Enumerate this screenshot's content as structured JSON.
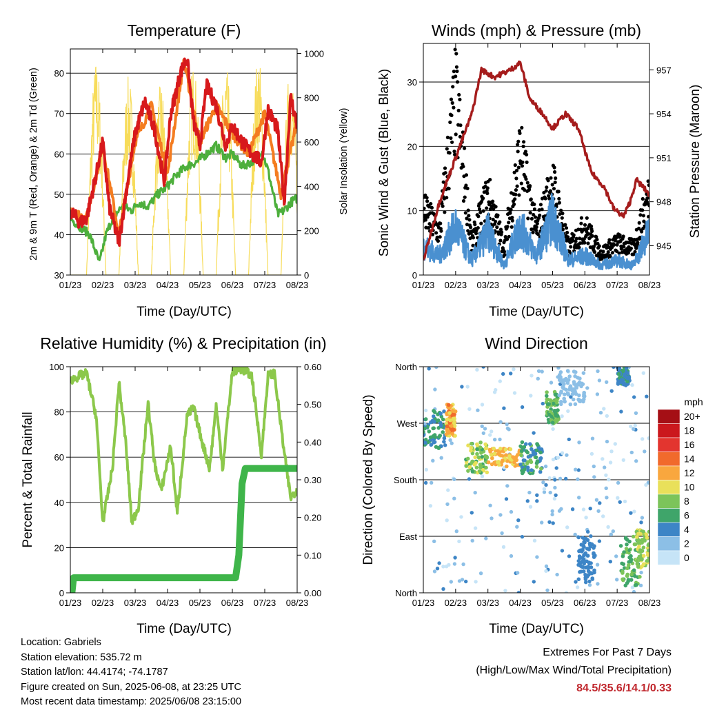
{
  "x_ticks": [
    "01/23",
    "02/23",
    "03/23",
    "04/23",
    "05/23",
    "06/23",
    "07/23",
    "08/23"
  ],
  "x_label": "Time (Day/UTC)",
  "colors": {
    "red": "#d7191c",
    "orange": "#f47c20",
    "green": "#4daf3c",
    "yellow": "#f7dc5a",
    "maroon": "#a51c1c",
    "blue": "#4a90d0",
    "black": "#000000",
    "rh": "#8cc84b",
    "rain": "#3fb54a"
  },
  "panels": {
    "temperature": {
      "title": "Temperature (F)",
      "ylabel_left": "2m & 9m T (Red, Orange) & 2m Td (Green)",
      "ylabel_right": "Solar Insolation (Yellow)"
    },
    "winds": {
      "title": "Winds (mph) & Pressure (mb)",
      "ylabel_left": "Sonic Wind & Gust (Blue, Black)",
      "ylabel_right": "Station Pressure (Maroon)"
    },
    "humidity": {
      "title": "Relative Humidity (%) & Precipitation (in)",
      "ylabel_left": "Percent & Total Rainfall"
    },
    "direction": {
      "title": "Wind Direction",
      "ylabel_left": "Direction (Colored By Speed)",
      "legend_title": "mph",
      "legend_labels": [
        "20+",
        "18",
        "16",
        "14",
        "12",
        "10",
        "8",
        "6",
        "4",
        "2",
        "0"
      ],
      "legend_colors": [
        "#a50f15",
        "#cb181d",
        "#e3352f",
        "#f16a2c",
        "#f9a73e",
        "#e9e05a",
        "#7cc45a",
        "#3fa56a",
        "#3d85c6",
        "#8cbfe6",
        "#c6e4f7"
      ]
    }
  },
  "chart_data": [
    {
      "type": "line",
      "title": "Temperature (F)",
      "xlabel": "Time (Day/UTC)",
      "ylabel": "2m & 9m T (Red, Orange) & 2m Td (Green)",
      "y2label": "Solar Insolation (Yellow)",
      "ylim": [
        30,
        86
      ],
      "y_ticks": [
        30,
        40,
        50,
        60,
        70,
        80
      ],
      "y2lim": [
        0,
        1020
      ],
      "y2_ticks": [
        0,
        200,
        400,
        600,
        800,
        1000
      ],
      "series": [
        {
          "name": "2m T",
          "axis": "left",
          "color": "#d7191c",
          "x": [
            0.0,
            0.1,
            0.3,
            0.5,
            0.8,
            1.0,
            1.2,
            1.5,
            1.8,
            2.0,
            2.3,
            2.6,
            2.9,
            3.1,
            3.4,
            3.6,
            3.8,
            4.0,
            4.2,
            4.5,
            4.8,
            5.0,
            5.3,
            5.6,
            5.9,
            6.1,
            6.4,
            6.6,
            6.8,
            7.0
          ],
          "y": [
            46,
            45,
            43,
            44,
            55,
            63,
            47,
            38,
            55,
            65,
            73,
            66,
            53,
            70,
            80,
            84,
            68,
            62,
            77,
            72,
            62,
            67,
            63,
            60,
            58,
            71,
            66,
            48,
            74,
            67
          ]
        },
        {
          "name": "9m T",
          "axis": "left",
          "color": "#f47c20",
          "x": [
            0.0,
            0.5,
            1.0,
            1.5,
            2.0,
            2.5,
            3.0,
            3.5,
            4.0,
            4.5,
            5.0,
            5.5,
            6.0,
            6.5,
            7.0
          ],
          "y": [
            46,
            44,
            62,
            40,
            63,
            72,
            55,
            83,
            63,
            72,
            65,
            60,
            70,
            50,
            68
          ]
        },
        {
          "name": "2m Td",
          "axis": "left",
          "color": "#4daf3c",
          "x": [
            0.0,
            0.3,
            0.6,
            0.9,
            1.1,
            1.3,
            1.6,
            1.9,
            2.1,
            2.4,
            2.7,
            3.0,
            3.3,
            3.6,
            3.9,
            4.2,
            4.5,
            4.8,
            5.0,
            5.3,
            5.6,
            5.9,
            6.1,
            6.4,
            6.6,
            6.8,
            7.0
          ],
          "y": [
            44,
            42,
            40,
            33,
            40,
            44,
            47,
            46,
            48,
            47,
            50,
            52,
            55,
            57,
            58,
            60,
            62,
            59,
            60,
            57,
            58,
            61,
            56,
            45,
            46,
            48,
            49
          ]
        },
        {
          "name": "Solar Insolation",
          "axis": "right",
          "color": "#f7dc5a",
          "peaks_x": [
            0.8,
            1.8,
            2.8,
            3.8,
            4.8,
            5.8,
            6.8
          ],
          "peaks_y": [
            980,
            900,
            870,
            960,
            950,
            1000,
            960
          ]
        }
      ]
    },
    {
      "type": "line",
      "title": "Winds (mph) & Pressure (mb)",
      "xlabel": "Time (Day/UTC)",
      "ylabel": "Sonic Wind & Gust (Blue, Black)",
      "y2label": "Station Pressure (Maroon)",
      "ylim": [
        0,
        36
      ],
      "y_ticks": [
        0,
        10,
        20,
        30
      ],
      "y2lim": [
        943,
        958.8
      ],
      "y2_ticks": [
        945,
        948,
        951,
        954,
        957
      ],
      "series": [
        {
          "name": "Sonic Wind",
          "axis": "left",
          "color": "#4a90d0",
          "x": [
            0.0,
            0.5,
            1.0,
            1.5,
            2.0,
            2.5,
            3.0,
            3.5,
            4.0,
            4.5,
            5.0,
            5.5,
            6.0,
            6.5,
            7.0
          ],
          "y": [
            6,
            4,
            10,
            3,
            9,
            2,
            10,
            4,
            12,
            3,
            4,
            2,
            3,
            2,
            9
          ]
        },
        {
          "name": "Gust",
          "axis": "left",
          "color": "#000000",
          "x": [
            0.0,
            0.5,
            1.0,
            1.5,
            2.0,
            2.5,
            3.0,
            3.5,
            4.0,
            4.5,
            5.0,
            5.5,
            6.0,
            6.5,
            7.0
          ],
          "y": [
            12,
            8,
            33,
            6,
            15,
            5,
            23,
            8,
            17,
            5,
            9,
            4,
            6,
            5,
            15
          ]
        },
        {
          "name": "Station Pressure",
          "axis": "right",
          "color": "#a51c1c",
          "x": [
            0.0,
            0.5,
            1.0,
            1.5,
            1.8,
            2.2,
            2.7,
            3.0,
            3.3,
            3.7,
            4.0,
            4.4,
            4.8,
            5.2,
            5.6,
            5.9,
            6.2,
            6.4,
            6.6,
            6.8,
            7.0
          ],
          "y": [
            944,
            948,
            951,
            954,
            957,
            956.5,
            957,
            957.5,
            955,
            954,
            953,
            954,
            953,
            950,
            949,
            947.5,
            947,
            948,
            949.5,
            949,
            948.5
          ]
        }
      ]
    },
    {
      "type": "line",
      "title": "Relative Humidity (%) & Precipitation (in)",
      "xlabel": "Time (Day/UTC)",
      "ylabel": "Percent & Total Rainfall",
      "ylim": [
        0,
        100
      ],
      "y_ticks": [
        0,
        20,
        40,
        60,
        80,
        100
      ],
      "y2lim": [
        0,
        0.6
      ],
      "y2_ticks": [
        "0.00",
        "0.10",
        "0.20",
        "0.30",
        "0.40",
        "0.50",
        "0.60"
      ],
      "series": [
        {
          "name": "Relative Humidity",
          "axis": "left",
          "color": "#8cc84b",
          "x": [
            0.0,
            0.3,
            0.5,
            0.8,
            1.0,
            1.3,
            1.5,
            1.7,
            1.9,
            2.1,
            2.4,
            2.6,
            2.8,
            3.1,
            3.3,
            3.6,
            3.8,
            4.1,
            4.3,
            4.5,
            4.7,
            5.0,
            5.3,
            5.6,
            5.9,
            6.1,
            6.3,
            6.6,
            6.8,
            7.0
          ],
          "y": [
            94,
            96,
            97,
            78,
            31,
            55,
            93,
            68,
            31,
            38,
            84,
            57,
            45,
            65,
            35,
            78,
            82,
            65,
            55,
            83,
            55,
            98,
            99,
            96,
            61,
            96,
            97,
            62,
            42,
            46
          ]
        },
        {
          "name": "Total Rainfall",
          "axis": "right",
          "color": "#3fb54a",
          "x": [
            0.0,
            0.05,
            0.1,
            0.2,
            5.1,
            5.2,
            5.3,
            5.4,
            6.0,
            7.0
          ],
          "y": [
            0.0,
            0.0,
            0.04,
            0.04,
            0.04,
            0.1,
            0.29,
            0.33,
            0.33,
            0.33
          ]
        }
      ]
    },
    {
      "type": "scatter",
      "title": "Wind Direction",
      "xlabel": "Time (Day/UTC)",
      "ylabel": "Direction (Colored By Speed)",
      "ylim": [
        0,
        360
      ],
      "y_tick_labels": [
        "North",
        "East",
        "South",
        "West",
        "North"
      ],
      "y_tick_values": [
        0,
        90,
        180,
        270,
        360
      ],
      "color_scale": {
        "label": "mph",
        "range": [
          0,
          20
        ]
      },
      "clusters": [
        {
          "x": [
            0.0,
            0.7
          ],
          "y": [
            230,
            290
          ],
          "mph": [
            4,
            6
          ]
        },
        {
          "x": [
            0.7,
            1.0
          ],
          "y": [
            250,
            300
          ],
          "mph": [
            10,
            14
          ]
        },
        {
          "x": [
            1.3,
            2.0
          ],
          "y": [
            190,
            240
          ],
          "mph": [
            6,
            10
          ]
        },
        {
          "x": [
            2.0,
            3.0
          ],
          "y": [
            200,
            230
          ],
          "mph": [
            10,
            13
          ]
        },
        {
          "x": [
            3.0,
            3.7
          ],
          "y": [
            190,
            240
          ],
          "mph": [
            3,
            8
          ]
        },
        {
          "x": [
            3.8,
            4.2
          ],
          "y": [
            270,
            320
          ],
          "mph": [
            5,
            9
          ]
        },
        {
          "x": [
            4.2,
            5.0
          ],
          "y": [
            300,
            355
          ],
          "mph": [
            1,
            3
          ]
        },
        {
          "x": [
            4.8,
            5.3
          ],
          "y": [
            20,
            90
          ],
          "mph": [
            3,
            5
          ]
        },
        {
          "x": [
            6.0,
            6.4
          ],
          "y": [
            330,
            360
          ],
          "mph": [
            3,
            6
          ]
        },
        {
          "x": [
            6.1,
            6.7
          ],
          "y": [
            10,
            90
          ],
          "mph": [
            5,
            8
          ]
        },
        {
          "x": [
            6.6,
            7.0
          ],
          "y": [
            40,
            100
          ],
          "mph": [
            7,
            10
          ]
        }
      ]
    }
  ],
  "info": {
    "location": "Location: Gabriels",
    "elevation": "Station elevation: 535.72 m",
    "latlon": "Station lat/lon: 44.4174; -74.1787",
    "created": "Figure created on Sun, 2025-06-08, at 23:25 UTC",
    "recent": "Most recent data timestamp: 2025/06/08 23:15:00"
  },
  "extremes": {
    "title": "Extremes For Past 7 Days",
    "subtitle": "(High/Low/Max Wind/Total Precipitation)",
    "values": "84.5/35.6/14.1/0.33"
  }
}
